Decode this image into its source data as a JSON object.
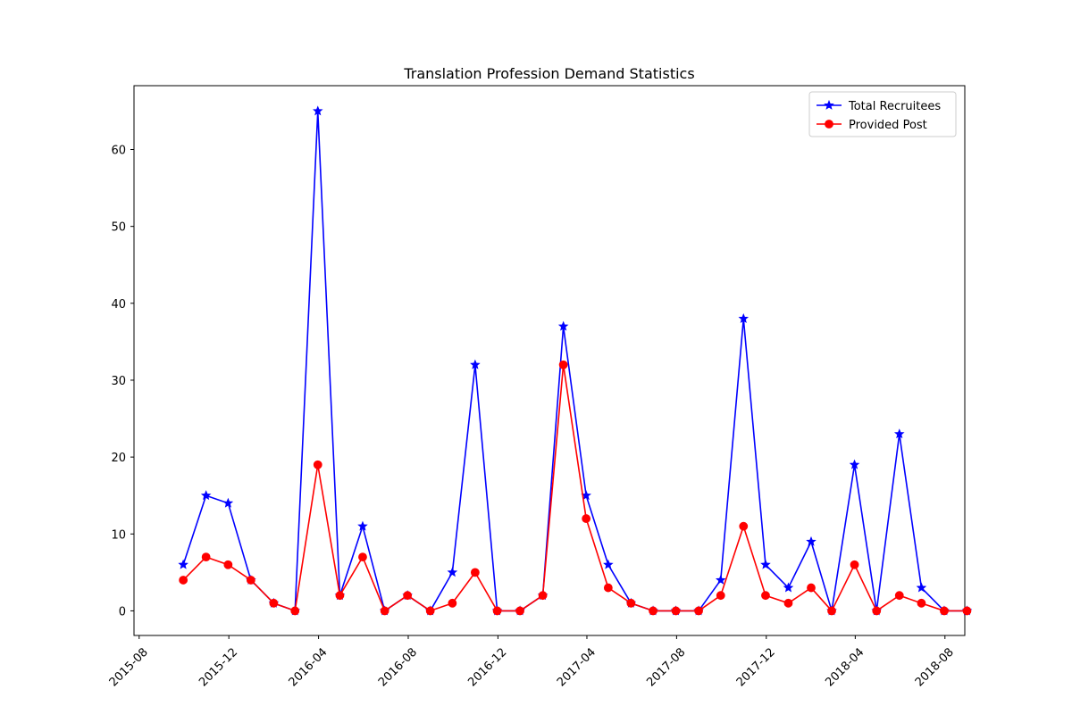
{
  "chart_data": {
    "type": "line",
    "title": "Translation Profession Demand Statistics",
    "xlabel": "",
    "ylabel": "",
    "x_axis_type": "date",
    "xlim": [
      "2015-07-25",
      "2018-08-28"
    ],
    "ylim": [
      -3.2,
      68.3
    ],
    "x_ticks": [
      "2015-08",
      "2015-12",
      "2016-04",
      "2016-08",
      "2016-12",
      "2017-04",
      "2017-08",
      "2017-12",
      "2018-04",
      "2018-08"
    ],
    "x_tick_label_rotation": 45,
    "y_ticks": [
      0,
      10,
      20,
      30,
      40,
      50,
      60
    ],
    "grid": false,
    "legend_position": "top-right",
    "x": [
      "2015-09-30",
      "2015-10-31",
      "2015-11-30",
      "2015-12-31",
      "2016-01-31",
      "2016-02-29",
      "2016-03-31",
      "2016-04-30",
      "2016-05-31",
      "2016-06-30",
      "2016-07-31",
      "2016-08-31",
      "2016-09-30",
      "2016-10-31",
      "2016-11-30",
      "2016-12-31",
      "2017-01-31",
      "2017-02-28",
      "2017-03-31",
      "2017-04-30",
      "2017-05-31",
      "2017-06-30",
      "2017-07-31",
      "2017-08-31",
      "2017-09-30",
      "2017-10-31",
      "2017-11-30",
      "2017-12-31",
      "2018-01-31",
      "2018-02-28",
      "2018-03-31",
      "2018-04-30",
      "2018-05-31",
      "2018-06-30",
      "2018-07-31",
      "2018-08-31"
    ],
    "series": [
      {
        "name": "Total Recruitees",
        "color": "#0000ff",
        "marker": "star",
        "values": [
          6,
          15,
          14,
          4,
          1,
          0,
          65,
          2,
          11,
          0,
          2,
          0,
          5,
          32,
          0,
          0,
          2,
          37,
          15,
          6,
          1,
          0,
          0,
          0,
          4,
          38,
          6,
          3,
          9,
          0,
          19,
          0,
          23,
          3,
          0,
          0
        ]
      },
      {
        "name": "Provided Post",
        "color": "#ff0000",
        "marker": "circle",
        "values": [
          4,
          7,
          6,
          4,
          1,
          0,
          19,
          2,
          7,
          0,
          2,
          0,
          1,
          5,
          0,
          0,
          2,
          32,
          12,
          3,
          1,
          0,
          0,
          0,
          2,
          11,
          2,
          1,
          3,
          0,
          6,
          0,
          2,
          1,
          0,
          0
        ]
      }
    ]
  }
}
